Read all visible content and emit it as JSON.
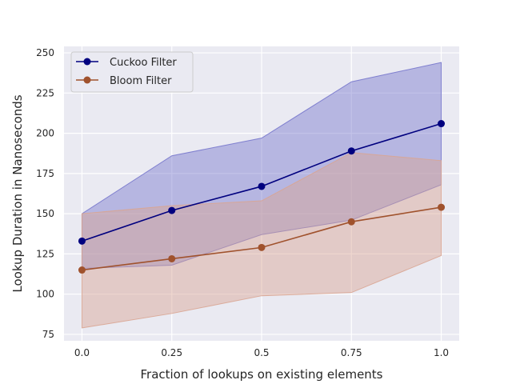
{
  "chart_data": {
    "type": "line",
    "title": "",
    "xlabel": "Fraction of lookups on existing elements",
    "ylabel": "Lookup Duration in Nanoseconds",
    "x": [
      0.0,
      0.25,
      0.5,
      0.75,
      1.0
    ],
    "x_tick_labels": [
      "0.0",
      "0.25",
      "0.5",
      "0.75",
      "1.0"
    ],
    "y_ticks": [
      75,
      100,
      125,
      150,
      175,
      200,
      225,
      250
    ],
    "xlim": [
      -0.05,
      1.05
    ],
    "ylim": [
      71,
      254
    ],
    "grid": true,
    "legend_position": "top-left",
    "series": [
      {
        "name": "Cuckoo Filter",
        "color": "#00007f",
        "band_color": "#7777cc",
        "values": [
          133,
          152,
          167,
          189,
          206
        ],
        "lower": [
          116,
          118,
          137,
          146,
          168
        ],
        "upper": [
          150,
          186,
          197,
          232,
          244
        ]
      },
      {
        "name": "Bloom Filter",
        "color": "#a0522d",
        "band_color": "#d9a592",
        "values": [
          115,
          122,
          129,
          145,
          154
        ],
        "lower": [
          79,
          88,
          99,
          101,
          124
        ],
        "upper": [
          150,
          155,
          158,
          188,
          183
        ]
      }
    ]
  }
}
